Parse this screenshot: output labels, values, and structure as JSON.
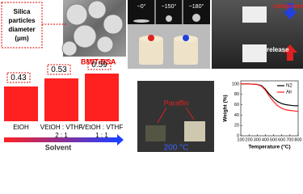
{
  "chart_data": [
    {
      "type": "bar",
      "categories": [
        [
          "EtOH"
        ],
        [
          "VEtOH : VTHF",
          "2 : 1"
        ],
        [
          "VEtOH : VTHF",
          "1 : 1"
        ]
      ],
      "values": [
        0.43,
        0.53,
        0.59
      ],
      "color": "#ff2020",
      "x_label": "Solvent"
    },
    {
      "type": "line",
      "x": [
        100,
        200,
        300,
        350,
        400,
        450,
        500,
        550,
        600,
        650,
        700,
        750,
        800
      ],
      "series": [
        {
          "name": "N2",
          "color": "#000000",
          "values": [
            100,
            100,
            99,
            97,
            90,
            80,
            72,
            66,
            62,
            60,
            59,
            58,
            58
          ]
        },
        {
          "name": "Air",
          "color": "#ff2020",
          "values": [
            100,
            100,
            99,
            96,
            88,
            76,
            66,
            58,
            53,
            50,
            49,
            48,
            47
          ]
        }
      ],
      "xlim": [
        100,
        800
      ],
      "xticks": [
        100,
        200,
        300,
        400,
        500,
        600,
        700,
        800
      ],
      "ylim": [
        0,
        106
      ],
      "yticks": [
        0,
        20,
        40,
        60,
        80,
        100
      ],
      "x_label": "Temperature (°C)",
      "y_label": "Weight (%)",
      "legend": "upper-right"
    }
  ],
  "annotations": {
    "diameter_label": "Silica particles diameter (μm)",
    "material": "BMIT-BSA",
    "angles": [
      "~0°",
      "~150°",
      "~180°"
    ],
    "compress": "compress",
    "release": "release",
    "paraffin": "Paraffin",
    "temperature": "200 °C"
  }
}
